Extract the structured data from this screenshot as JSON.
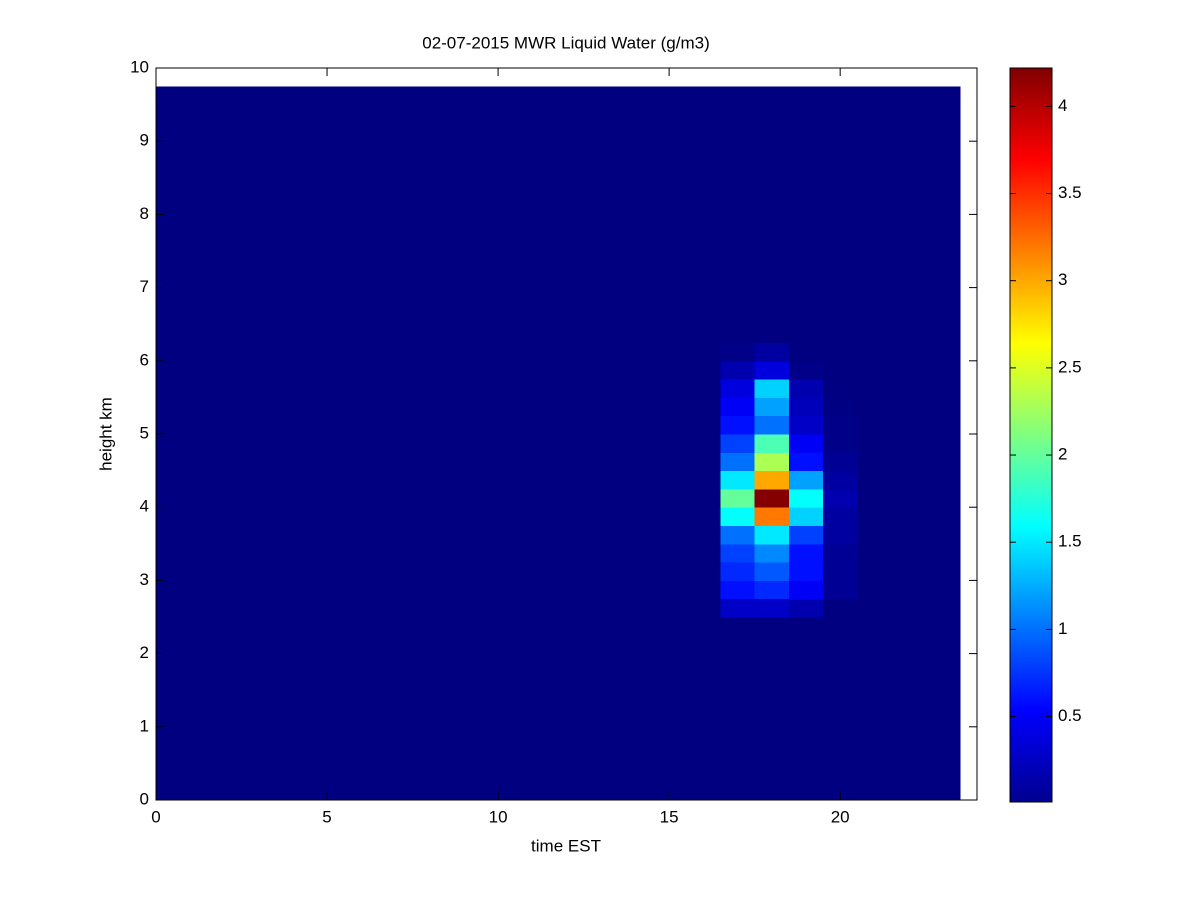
{
  "chart_data": {
    "type": "heatmap",
    "title": "02-07-2015 MWR Liquid Water (g/m3)",
    "x_label": "time EST",
    "y_label": "height km",
    "xbins": [
      0,
      16.5,
      17.5,
      18.5,
      19.5,
      20.5,
      23.5
    ],
    "ybins": [
      0,
      2.5,
      2.75,
      3.0,
      3.25,
      3.5,
      3.75,
      4.0,
      4.25,
      4.5,
      4.75,
      5.0,
      5.25,
      5.5,
      5.75,
      6.0,
      6.25,
      9.75
    ],
    "values": [
      [
        0.01,
        0.01,
        0.01,
        0.01,
        0.01,
        0.01
      ],
      [
        0.01,
        0.3,
        0.3,
        0.2,
        0.01,
        0.01
      ],
      [
        0.01,
        0.6,
        0.7,
        0.5,
        0.1,
        0.01
      ],
      [
        0.01,
        0.7,
        0.9,
        0.6,
        0.1,
        0.01
      ],
      [
        0.01,
        0.8,
        1.1,
        0.6,
        0.1,
        0.01
      ],
      [
        0.01,
        1.0,
        1.5,
        0.8,
        0.15,
        0.01
      ],
      [
        0.01,
        1.6,
        3.2,
        1.4,
        0.15,
        0.01
      ],
      [
        0.01,
        2.0,
        4.2,
        1.6,
        0.2,
        0.01
      ],
      [
        0.01,
        1.5,
        3.0,
        1.2,
        0.15,
        0.01
      ],
      [
        0.01,
        1.0,
        2.3,
        0.6,
        0.1,
        0.01
      ],
      [
        0.01,
        0.8,
        1.9,
        0.5,
        0.05,
        0.01
      ],
      [
        0.01,
        0.6,
        1.0,
        0.3,
        0.05,
        0.01
      ],
      [
        0.01,
        0.5,
        1.2,
        0.25,
        0.02,
        0.01
      ],
      [
        0.01,
        0.4,
        1.4,
        0.2,
        0.01,
        0.01
      ],
      [
        0.01,
        0.2,
        0.4,
        0.05,
        0.01,
        0.01
      ],
      [
        0.01,
        0.05,
        0.15,
        0.01,
        0.01,
        0.01
      ],
      [
        0.01,
        0.01,
        0.01,
        0.01,
        0.01,
        0.01
      ]
    ],
    "colormap": "jet",
    "clim": [
      0.01,
      4.22
    ],
    "cticks": [
      0.5,
      1,
      1.5,
      2,
      2.5,
      3,
      3.5,
      4
    ],
    "xlim": [
      0,
      24
    ],
    "xticks": [
      0,
      5,
      10,
      15,
      20
    ],
    "ylim": [
      0,
      10
    ],
    "yticks": [
      0,
      1,
      2,
      3,
      4,
      5,
      6,
      7,
      8,
      9,
      10
    ]
  }
}
